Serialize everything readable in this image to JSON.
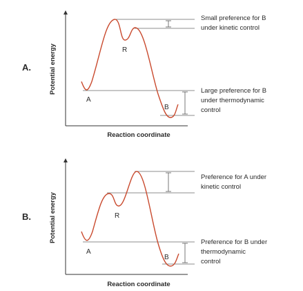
{
  "panels": [
    {
      "label": "A.",
      "ylabel": "Potential energy",
      "xlabel": "Reaction coordinate",
      "points": {
        "a": "A",
        "r": "R",
        "b": "B"
      },
      "notes": {
        "top": [
          "Small preference for B",
          "under kinetic control"
        ],
        "bottom": [
          "Large preference for B",
          "under thermodynamic",
          "control"
        ]
      },
      "colors": {
        "curve": "#c94a2e",
        "axes": "#333333",
        "text": "#2a2a2a"
      }
    },
    {
      "label": "B.",
      "ylabel": "Potential energy",
      "xlabel": "Reaction coordinate",
      "points": {
        "a": "A",
        "r": "R",
        "b": "B"
      },
      "notes": {
        "top": [
          "Preference for A under",
          "kinetic control"
        ],
        "bottom": [
          "Preference for B under",
          "thermodynamic",
          "control"
        ]
      },
      "colors": {
        "curve": "#c94a2e",
        "axes": "#333333",
        "text": "#2a2a2a"
      }
    }
  ]
}
